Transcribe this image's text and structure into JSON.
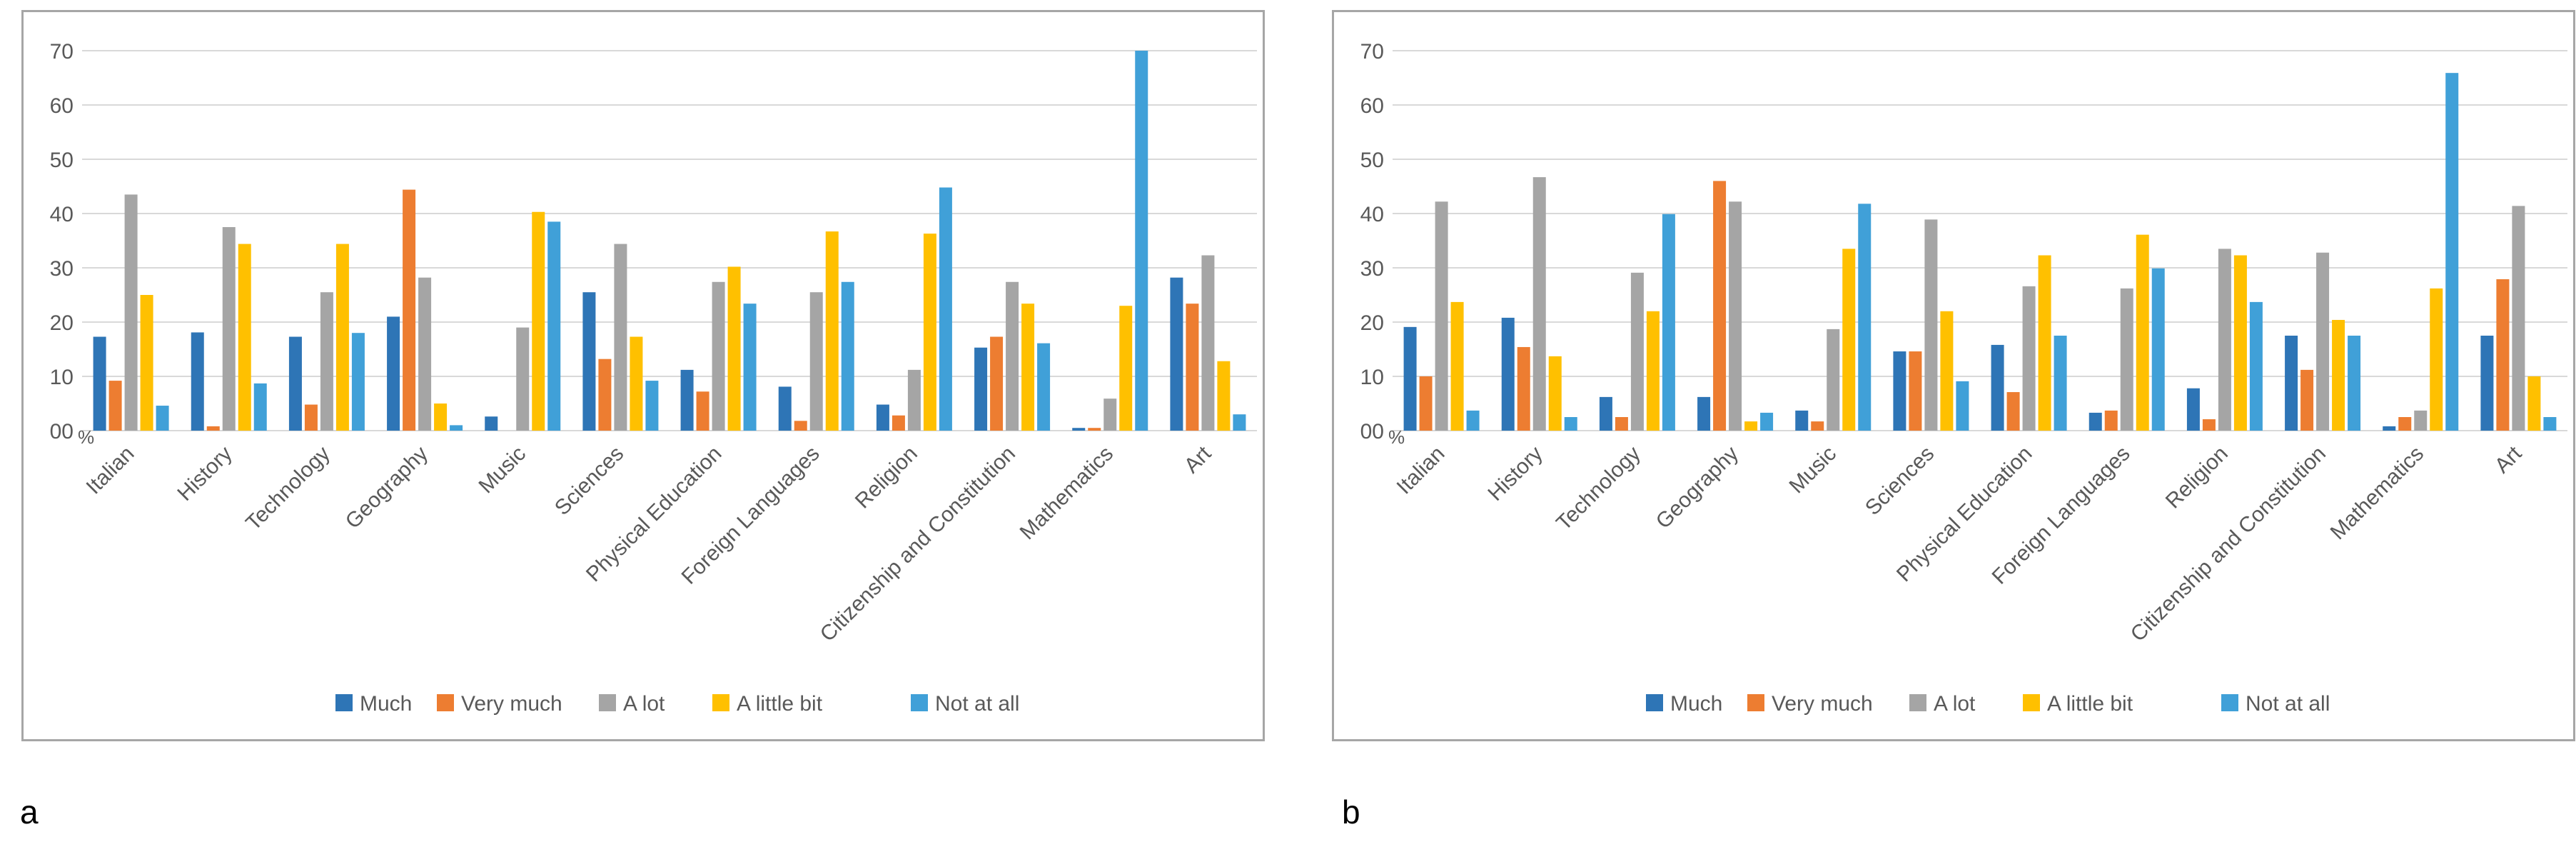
{
  "chart_data": [
    {
      "type": "bar",
      "panel_label": "a",
      "categories": [
        "Italian",
        "History",
        "Technology",
        "Geography",
        "Music",
        "Sciences",
        "Physical Education",
        "Foreign Languages",
        "Religion",
        "Citizenship and Constitution",
        "Mathematics",
        "Art"
      ],
      "series": [
        {
          "name": "Much",
          "color": "#2e75b6",
          "values": [
            17.3,
            18.1,
            17.3,
            21.0,
            2.6,
            25.5,
            11.2,
            8.1,
            4.8,
            15.3,
            0.5,
            28.2
          ]
        },
        {
          "name": "Very much",
          "color": "#ed7d31",
          "values": [
            9.2,
            0.8,
            4.8,
            44.4,
            0,
            13.2,
            7.2,
            1.8,
            2.8,
            17.3,
            0.5,
            23.4
          ]
        },
        {
          "name": "A lot",
          "color": "#a5a5a5",
          "values": [
            43.5,
            37.5,
            25.5,
            28.2,
            19.0,
            34.4,
            27.4,
            25.5,
            11.2,
            27.4,
            5.9,
            32.3
          ]
        },
        {
          "name": "A little bit",
          "color": "#ffc000",
          "values": [
            25.0,
            34.4,
            34.4,
            5.0,
            40.3,
            17.3,
            30.2,
            36.7,
            36.3,
            23.4,
            23.0,
            12.8
          ]
        },
        {
          "name": "Not at all",
          "color": "#40a0d8",
          "values": [
            4.6,
            8.7,
            18.0,
            1.0,
            38.5,
            9.2,
            23.4,
            27.4,
            44.8,
            16.1,
            70.0,
            3.0
          ]
        }
      ],
      "y_ticks": [
        "00",
        "10",
        "20",
        "30",
        "40",
        "50",
        "60",
        "70"
      ],
      "y_unit": "%",
      "ylim": [
        0,
        70
      ],
      "grid": true,
      "legend": "bottom",
      "title": "",
      "xlabel": "",
      "ylabel": ""
    },
    {
      "type": "bar",
      "panel_label": "b",
      "categories": [
        "Italian",
        "History",
        "Technology",
        "Geography",
        "Music",
        "Sciences",
        "Physical Education",
        "Foreign Languages",
        "Religion",
        "Citizenship and Constitution",
        "Mathematics",
        "Art"
      ],
      "series": [
        {
          "name": "Much",
          "color": "#2e75b6",
          "values": [
            19.1,
            20.8,
            6.2,
            6.2,
            3.7,
            14.6,
            15.8,
            3.3,
            7.8,
            17.5,
            0.8,
            17.5
          ]
        },
        {
          "name": "Very much",
          "color": "#ed7d31",
          "values": [
            10.0,
            15.4,
            2.5,
            46.0,
            1.7,
            14.6,
            7.1,
            3.7,
            2.1,
            11.2,
            2.5,
            27.9
          ]
        },
        {
          "name": "A lot",
          "color": "#a5a5a5",
          "values": [
            42.2,
            46.7,
            29.1,
            42.2,
            18.7,
            38.9,
            26.6,
            26.2,
            33.5,
            32.8,
            3.7,
            41.4
          ]
        },
        {
          "name": "A little bit",
          "color": "#ffc000",
          "values": [
            23.7,
            13.7,
            22.0,
            1.7,
            33.5,
            22.0,
            32.3,
            36.1,
            32.3,
            20.4,
            26.2,
            10.0
          ]
        },
        {
          "name": "Not at all",
          "color": "#40a0d8",
          "values": [
            3.7,
            2.5,
            39.9,
            3.3,
            41.8,
            9.1,
            17.5,
            29.9,
            23.7,
            17.5,
            65.9,
            2.5
          ]
        }
      ],
      "y_ticks": [
        "00",
        "10",
        "20",
        "30",
        "40",
        "50",
        "60",
        "70"
      ],
      "y_unit": "%",
      "ylim": [
        0,
        70
      ],
      "grid": true,
      "legend": "bottom",
      "title": "",
      "xlabel": "",
      "ylabel": ""
    }
  ]
}
